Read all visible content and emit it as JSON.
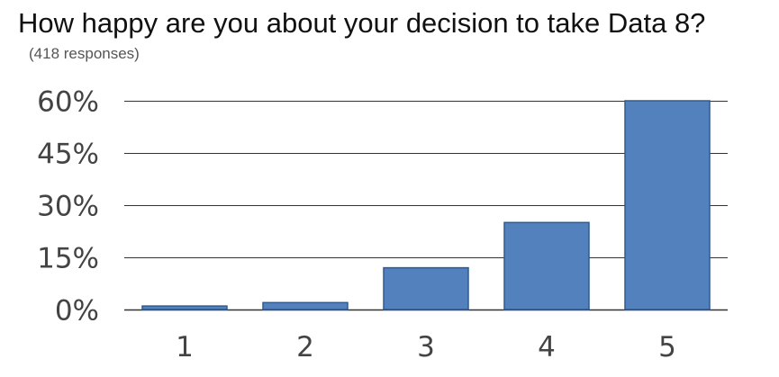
{
  "chart_data": {
    "type": "bar",
    "title": "How happy are you about your decision to take Data 8?",
    "subtitle": "(418 responses)",
    "categories": [
      "1",
      "2",
      "3",
      "4",
      "5"
    ],
    "values": [
      1,
      2,
      12,
      25,
      60
    ],
    "value_unit": "%",
    "ylim": [
      0,
      60
    ],
    "yticks": [
      0,
      15,
      30,
      45,
      60
    ],
    "ytick_labels": [
      "0%",
      "15%",
      "30%",
      "45%",
      "60%"
    ],
    "xlabel": "",
    "ylabel": "",
    "grid": true,
    "legend": "none",
    "colors": {
      "bar_fill": "#5381be",
      "bar_stroke": "#2f5a8f",
      "grid": "#333333",
      "tick_text": "#444444"
    }
  }
}
